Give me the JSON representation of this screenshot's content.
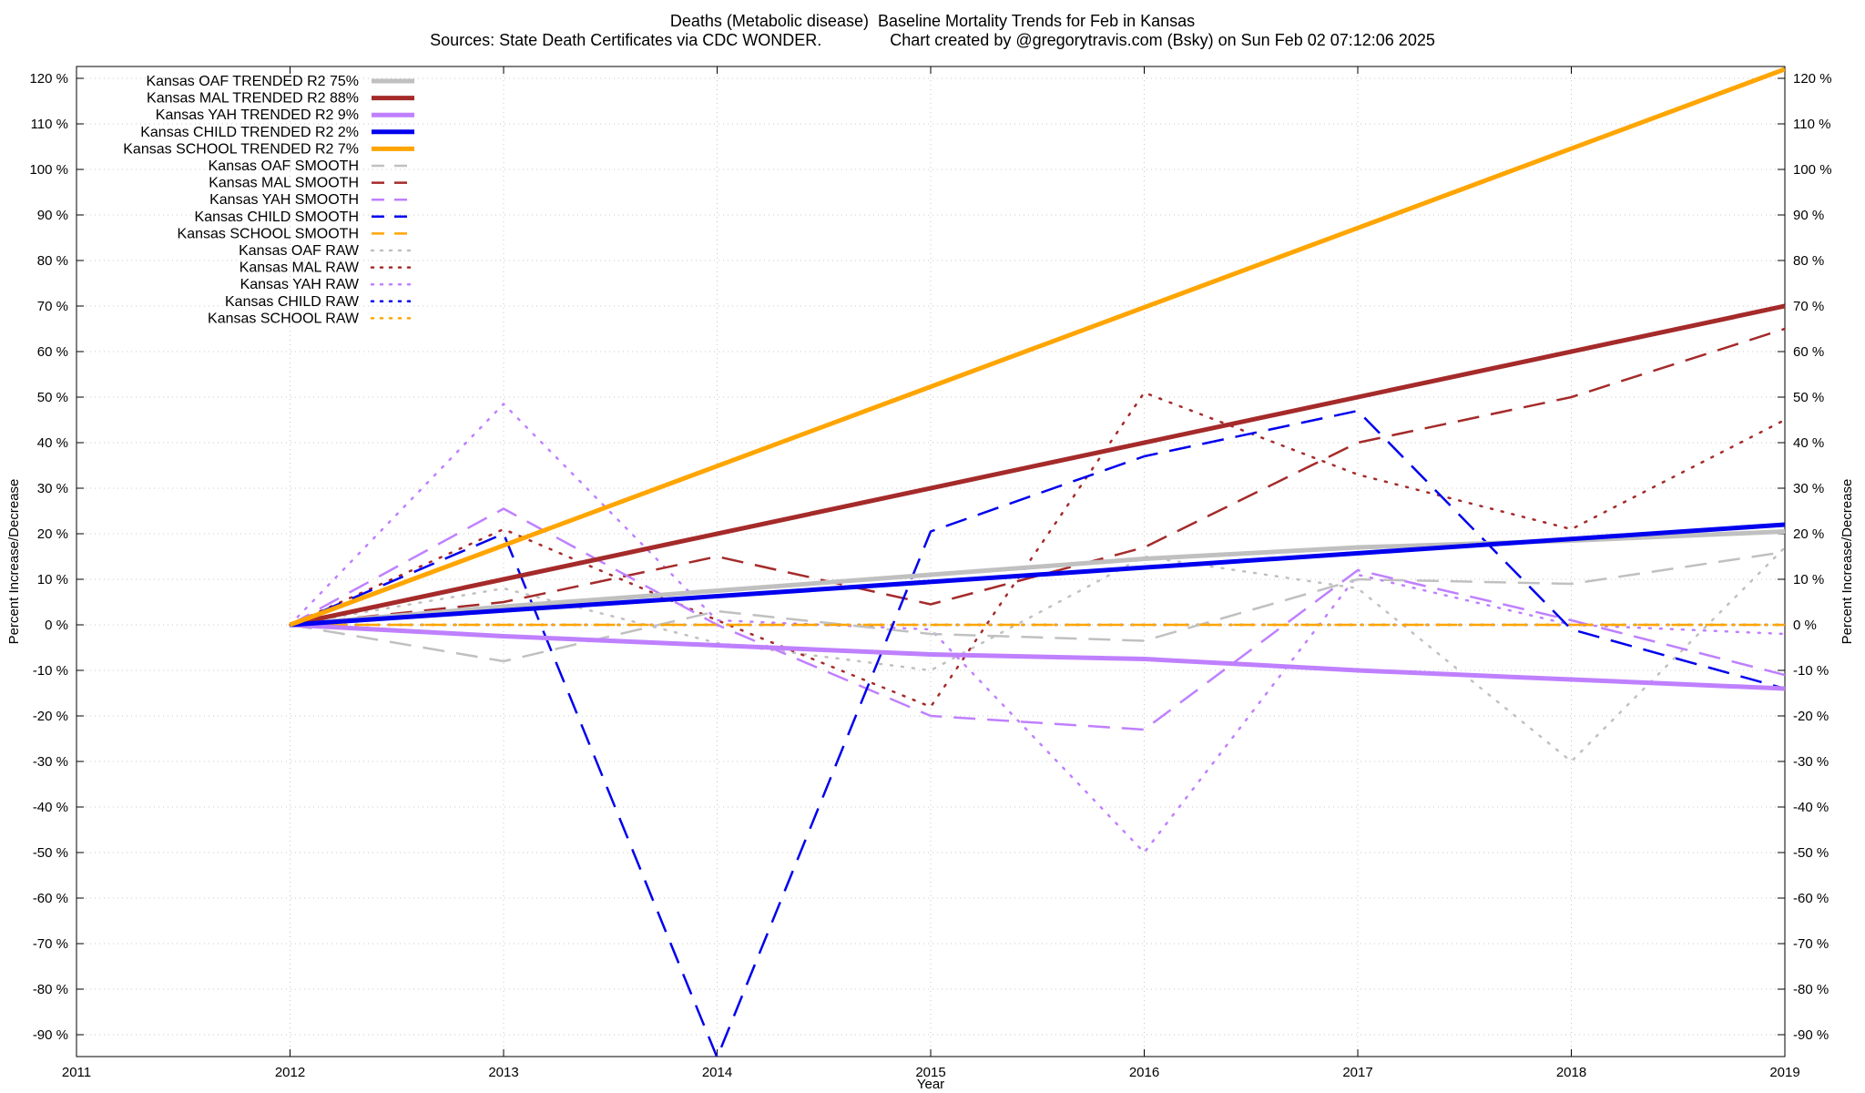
{
  "title": {
    "line1": "Deaths (Metabolic disease)  Baseline Mortality Trends for Feb in Kansas",
    "line2": "Sources: State Death Certificates via CDC WONDER.               Chart created by @gregorytravis.com (Bsky) on Sun Feb 02 07:12:06 2025"
  },
  "chart_data": {
    "type": "line",
    "xlabel": "Year",
    "ylabel": "Percent Increase/Decrease",
    "y2label": "Percent Increase/Decrease",
    "xlim": [
      2011,
      2019
    ],
    "ylim": [
      -95,
      122
    ],
    "x_ticks": [
      2011,
      2012,
      2013,
      2014,
      2015,
      2016,
      2017,
      2018,
      2019
    ],
    "y_ticks": [
      120,
      110,
      100,
      90,
      80,
      70,
      60,
      50,
      40,
      30,
      20,
      10,
      0,
      -10,
      -20,
      -30,
      -40,
      -50,
      -60,
      -70,
      -80,
      -90
    ],
    "y_tick_suffix": " %",
    "grid": true,
    "legend_position": "top-left",
    "series": [
      {
        "name": "Kansas OAF TRENDED R2  75%",
        "style": "solid",
        "color": "#c0c0c0",
        "width": 5,
        "x": [
          2012,
          2013,
          2014,
          2015,
          2016,
          2017,
          2018,
          2019
        ],
        "y": [
          0,
          4,
          7.5,
          11,
          14.5,
          17,
          18.5,
          20.5
        ]
      },
      {
        "name": "Kansas MAL TRENDED R2  88%",
        "style": "solid",
        "color": "#a52a2a",
        "width": 5,
        "x": [
          2012,
          2019
        ],
        "y": [
          0,
          70
        ]
      },
      {
        "name": "Kansas YAH TRENDED R2   9%",
        "style": "solid",
        "color": "#bf80ff",
        "width": 5,
        "x": [
          2012,
          2013,
          2014,
          2015,
          2016,
          2017,
          2018,
          2019
        ],
        "y": [
          0,
          -2.5,
          -4.5,
          -6.5,
          -7.5,
          -10,
          -12,
          -14
        ]
      },
      {
        "name": "Kansas CHILD TRENDED R2   2%",
        "style": "solid",
        "color": "#0000ee",
        "width": 5,
        "x": [
          2012,
          2019
        ],
        "y": [
          0,
          22
        ]
      },
      {
        "name": "Kansas SCHOOL TRENDED R2   7%",
        "style": "solid",
        "color": "#ffa500",
        "width": 5,
        "x": [
          2012,
          2019
        ],
        "y": [
          0,
          122
        ]
      },
      {
        "name": "Kansas OAF SMOOTH",
        "style": "dashed",
        "color": "#c0c0c0",
        "width": 2.5,
        "x": [
          2012,
          2013,
          2014,
          2015,
          2016,
          2017,
          2018,
          2019
        ],
        "y": [
          0,
          -8,
          3,
          -2,
          -3.5,
          10,
          9,
          16
        ]
      },
      {
        "name": "Kansas MAL SMOOTH",
        "style": "dashed",
        "color": "#a52a2a",
        "width": 2.5,
        "x": [
          2012,
          2013,
          2014,
          2015,
          2016,
          2017,
          2018,
          2019
        ],
        "y": [
          0,
          5,
          15,
          4.5,
          17,
          40,
          50,
          65
        ]
      },
      {
        "name": "Kansas YAH SMOOTH",
        "style": "dashed",
        "color": "#bf80ff",
        "width": 2.5,
        "x": [
          2012,
          2013,
          2014,
          2015,
          2016,
          2017,
          2018,
          2019
        ],
        "y": [
          0,
          25.5,
          0,
          -20,
          -23,
          12,
          1,
          -11
        ]
      },
      {
        "name": "Kansas CHILD SMOOTH",
        "style": "dashed",
        "color": "#0000ee",
        "width": 2.5,
        "x": [
          2012,
          2013,
          2014,
          2015,
          2016,
          2017,
          2018,
          2019
        ],
        "y": [
          0,
          20,
          -95,
          20.5,
          37,
          47,
          -1,
          -14
        ]
      },
      {
        "name": "Kansas SCHOOL SMOOTH",
        "style": "dashed",
        "color": "#ffa500",
        "width": 2.5,
        "x": [
          2012,
          2019
        ],
        "y": [
          0,
          0
        ]
      },
      {
        "name": "Kansas OAF RAW",
        "style": "dotted",
        "color": "#c0c0c0",
        "width": 2.5,
        "x": [
          2012,
          2013,
          2014,
          2015,
          2016,
          2017,
          2018,
          2019
        ],
        "y": [
          0,
          8,
          -4,
          -10,
          15,
          8,
          -30,
          17
        ]
      },
      {
        "name": "Kansas MAL RAW",
        "style": "dotted",
        "color": "#a52a2a",
        "width": 2.5,
        "x": [
          2012,
          2013,
          2014,
          2015,
          2016,
          2017,
          2018,
          2019
        ],
        "y": [
          0,
          21,
          1,
          -18,
          51,
          33,
          21,
          45
        ]
      },
      {
        "name": "Kansas YAH RAW",
        "style": "dotted",
        "color": "#bf80ff",
        "width": 2.5,
        "x": [
          2012,
          2013,
          2014,
          2015,
          2016,
          2017,
          2018,
          2019
        ],
        "y": [
          0,
          48.5,
          1,
          -1,
          -50,
          11,
          0,
          -2
        ]
      },
      {
        "name": "Kansas CHILD RAW",
        "style": "dotted",
        "color": "#0000ee",
        "width": 2.5,
        "x": [
          2012,
          2019
        ],
        "y": [
          0,
          0
        ]
      },
      {
        "name": "Kansas SCHOOL RAW",
        "style": "dotted",
        "color": "#ffa500",
        "width": 2.5,
        "x": [
          2012,
          2019
        ],
        "y": [
          0,
          0
        ]
      }
    ]
  }
}
